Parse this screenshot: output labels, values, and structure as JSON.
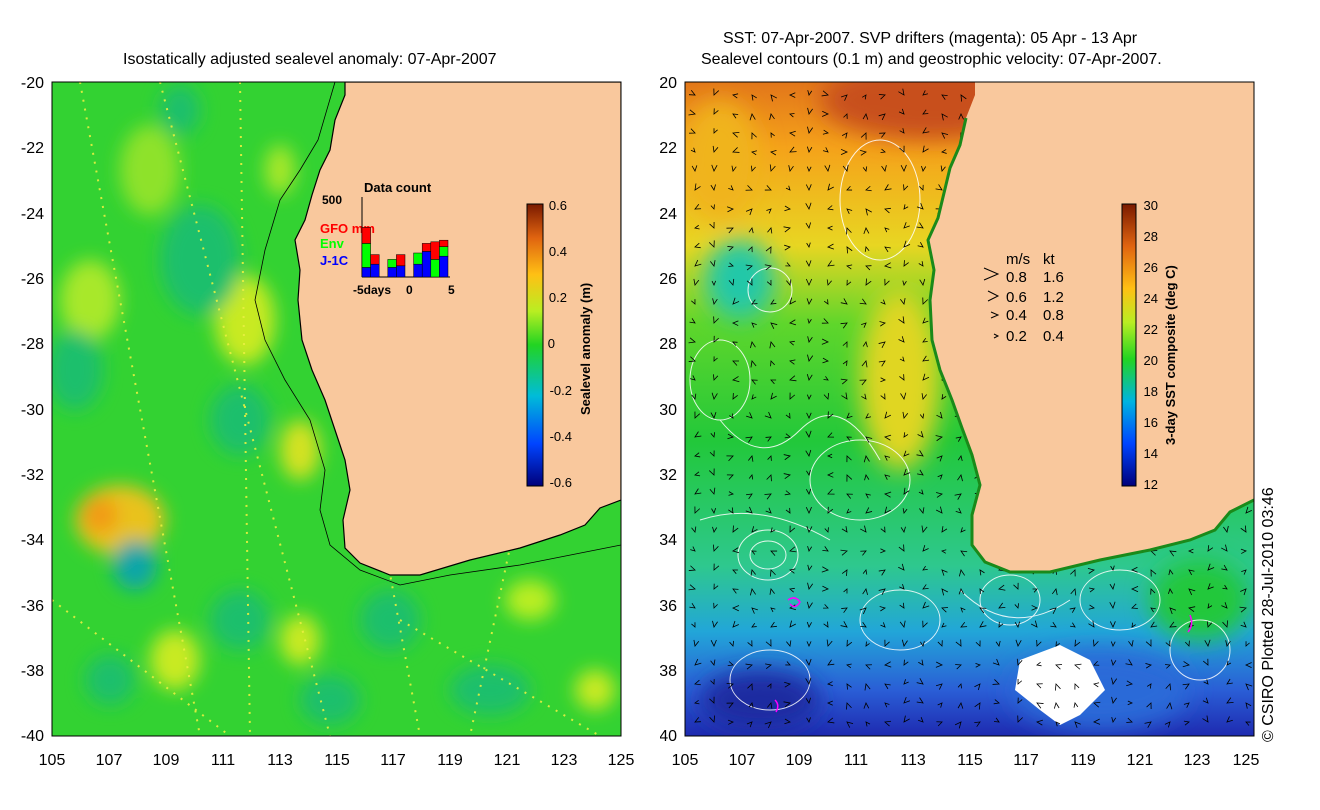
{
  "left_panel": {
    "title": "Isostatically adjusted sealevel anomaly: 07-Apr-2007",
    "lat_ticks": [
      "-20",
      "-22",
      "-24",
      "-26",
      "-28",
      "-30",
      "-32",
      "-34",
      "-36",
      "-38",
      "-40"
    ],
    "lon_ticks": [
      "105",
      "107",
      "109",
      "111",
      "113",
      "115",
      "117",
      "119",
      "121",
      "123",
      "125"
    ],
    "colorbar": {
      "label": "Sealevel anomaly (m)",
      "ticks": [
        "0.6",
        "0.4",
        "0.2",
        "0",
        "-0.2",
        "-0.4",
        "-0.6"
      ],
      "range": [
        -0.6,
        0.6
      ]
    },
    "data_count": {
      "title": "Data count",
      "ymax_label": "500",
      "legend": [
        {
          "label": "GFO mm",
          "color": "#ff0000"
        },
        {
          "label": "Env",
          "color": "#00ff00"
        },
        {
          "label": "J-1C",
          "color": "#0000ff"
        }
      ],
      "x_labels": {
        "left": "-5days",
        "mid": "0",
        "right": "5"
      },
      "bars": [
        {
          "day": -5,
          "gfo": 100,
          "env": 150,
          "j1c": 60
        },
        {
          "day": -4,
          "gfo": 60,
          "env": 0,
          "j1c": 80
        },
        {
          "day": -3,
          "gfo": 0,
          "env": 0,
          "j1c": 0
        },
        {
          "day": -2,
          "gfo": 0,
          "env": 50,
          "j1c": 60
        },
        {
          "day": -1,
          "gfo": 70,
          "env": 0,
          "j1c": 70
        },
        {
          "day": 0,
          "gfo": 0,
          "env": 0,
          "j1c": 0
        },
        {
          "day": 1,
          "gfo": 0,
          "env": 70,
          "j1c": 80
        },
        {
          "day": 2,
          "gfo": 50,
          "env": 0,
          "j1c": 160
        },
        {
          "day": 3,
          "gfo": 110,
          "env": 110,
          "j1c": 0
        },
        {
          "day": 4,
          "gfo": 40,
          "env": 60,
          "j1c": 130
        }
      ]
    }
  },
  "right_panel": {
    "title_line1": "SST: 07-Apr-2007. SVP drifters (magenta): 05 Apr - 13 Apr",
    "title_line2": "Sealevel contours (0.1 m) and geostrophic velocity: 07-Apr-2007.",
    "lat_ticks": [
      "-20",
      "-22",
      "-24",
      "-26",
      "-28",
      "-30",
      "-32",
      "-34",
      "-36",
      "-38",
      "-40"
    ],
    "lon_ticks": [
      "105",
      "107",
      "109",
      "111",
      "113",
      "115",
      "117",
      "119",
      "121",
      "123",
      "125"
    ],
    "colorbar": {
      "label": "3-day SST composite (deg C)",
      "ticks": [
        "30",
        "28",
        "26",
        "24",
        "22",
        "20",
        "18",
        "16",
        "14",
        "12"
      ],
      "range": [
        12,
        30
      ]
    },
    "velocity_legend": {
      "header_ms": "m/s",
      "header_kt": "kt",
      "rows": [
        {
          "ms": "0.8",
          "kt": "1.6"
        },
        {
          "ms": "0.6",
          "kt": "1.2"
        },
        {
          "ms": "0.4",
          "kt": "0.8"
        },
        {
          "ms": "0.2",
          "kt": "0.4"
        }
      ]
    }
  },
  "credit": "© CSIRO Plotted 28-Jul-2010 03:46",
  "colors": {
    "land": "#f9c89d",
    "ocean_green": "#2fd62f",
    "sst_warm": "#c24a0c",
    "sst_cool": "#1f5fd1",
    "drifter": "#ff00ff"
  }
}
